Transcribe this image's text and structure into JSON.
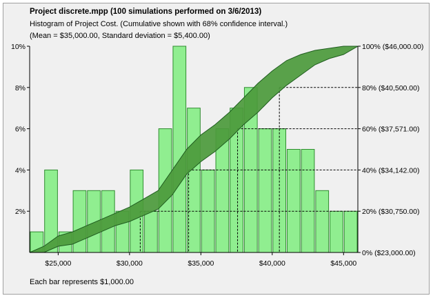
{
  "header": {
    "title": "Project discrete.mpp (100 simulations performed on 3/6/2013)",
    "subtitle": "Histogram of Project Cost.  (Cumulative shown with 68% confidence interval.)",
    "stats": "(Mean = $35,000.00, Standard deviation = $5,400.00)"
  },
  "footnote": "Each bar represents $1,000.00",
  "colors": {
    "bar_fill": "#90ee90",
    "bar_stroke": "#2e8b2e",
    "band_fill": "#4c9a3c",
    "band_stroke": "#1f5c1f",
    "background": "#f0f0f0"
  },
  "chart_data": {
    "type": "bar",
    "title": "Project discrete.mpp (100 simulations performed on 3/6/2013)",
    "xlim": [
      23000,
      46000
    ],
    "ylim": [
      0,
      10
    ],
    "bar_width": 1000,
    "bars": [
      {
        "x": 23500,
        "value": 1
      },
      {
        "x": 24500,
        "value": 4
      },
      {
        "x": 25500,
        "value": 1
      },
      {
        "x": 26500,
        "value": 3
      },
      {
        "x": 27500,
        "value": 3
      },
      {
        "x": 28500,
        "value": 3
      },
      {
        "x": 29500,
        "value": 2
      },
      {
        "x": 30500,
        "value": 4
      },
      {
        "x": 31500,
        "value": 2
      },
      {
        "x": 32500,
        "value": 6
      },
      {
        "x": 33500,
        "value": 10
      },
      {
        "x": 34500,
        "value": 7
      },
      {
        "x": 35500,
        "value": 4
      },
      {
        "x": 36500,
        "value": 6
      },
      {
        "x": 37500,
        "value": 7
      },
      {
        "x": 38500,
        "value": 8
      },
      {
        "x": 39500,
        "value": 6
      },
      {
        "x": 40500,
        "value": 6
      },
      {
        "x": 41500,
        "value": 5
      },
      {
        "x": 42500,
        "value": 5
      },
      {
        "x": 43500,
        "value": 3
      },
      {
        "x": 44500,
        "value": 2
      },
      {
        "x": 45500,
        "value": 2
      }
    ],
    "x_ticks": [
      {
        "value": 25000,
        "label": "$25,000"
      },
      {
        "value": 30000,
        "label": "$30,000"
      },
      {
        "value": 35000,
        "label": "$35,000"
      },
      {
        "value": 40000,
        "label": "$40,000"
      },
      {
        "value": 45000,
        "label": "$45,000"
      }
    ],
    "y_ticks_left": [
      {
        "value": 2,
        "label": "2%"
      },
      {
        "value": 4,
        "label": "4%"
      },
      {
        "value": 6,
        "label": "6%"
      },
      {
        "value": 8,
        "label": "8%"
      },
      {
        "value": 10,
        "label": "10%"
      }
    ],
    "y_ticks_right": [
      {
        "value": 0,
        "label": "0% ($23,000.00)"
      },
      {
        "value": 20,
        "label": "20% ($30,750.00)"
      },
      {
        "value": 40,
        "label": "40% ($34,142.00)"
      },
      {
        "value": 60,
        "label": "60% ($37,571.00)"
      },
      {
        "value": 80,
        "label": "80% ($40,500.00)"
      },
      {
        "value": 100,
        "label": "100% ($46,000.00)"
      }
    ],
    "cumulative_band": {
      "x": [
        23000,
        24000,
        25000,
        26000,
        27000,
        28000,
        29000,
        30000,
        31000,
        32000,
        33000,
        34000,
        35000,
        36000,
        37000,
        38000,
        39000,
        40000,
        41000,
        42000,
        43000,
        44000,
        45000,
        46000
      ],
      "lower": [
        0,
        0,
        3,
        4,
        7,
        10,
        13,
        15,
        18,
        21,
        28,
        38,
        44,
        49,
        55,
        62,
        68,
        75,
        81,
        86,
        91,
        94,
        96,
        100
      ],
      "upper": [
        0,
        3,
        8,
        10,
        13,
        16,
        19,
        22,
        26,
        30,
        40,
        50,
        57,
        62,
        68,
        75,
        82,
        88,
        93,
        96,
        98,
        99,
        100,
        100
      ]
    },
    "percentile_markers": [
      {
        "percent": 20,
        "x": 30750
      },
      {
        "percent": 40,
        "x": 34142
      },
      {
        "percent": 60,
        "x": 37571
      },
      {
        "percent": 80,
        "x": 40500
      }
    ]
  }
}
